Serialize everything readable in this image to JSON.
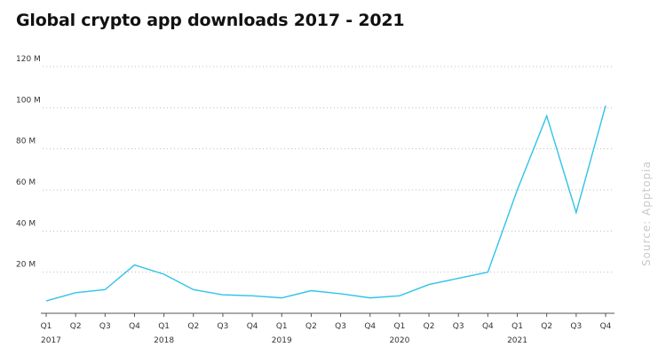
{
  "header": {
    "title": "Global crypto app downloads 2017 - 2021"
  },
  "source": {
    "text": "Source: Apptopia"
  },
  "colors": {
    "line": "#2fc3ea",
    "grid": "#bdbdbd",
    "axis": "#555555",
    "text": "#111111",
    "source": "#c8c8c8"
  },
  "chart_data": {
    "type": "line",
    "title": "Global crypto app downloads 2017 - 2021",
    "xlabel": "",
    "ylabel": "",
    "ylim": [
      0,
      120
    ],
    "y_unit": "M",
    "y_ticks": [
      {
        "value": 20,
        "label": "20 M"
      },
      {
        "value": 40,
        "label": "40 M"
      },
      {
        "value": 60,
        "label": "60 M"
      },
      {
        "value": 80,
        "label": "80 M"
      },
      {
        "value": 100,
        "label": "100 M"
      },
      {
        "value": 120,
        "label": "120 M"
      }
    ],
    "grid": true,
    "legend": "none",
    "categories": [
      "Q1",
      "Q2",
      "Q3",
      "Q4",
      "Q1",
      "Q2",
      "Q3",
      "Q4",
      "Q1",
      "Q2",
      "Q3",
      "Q4",
      "Q1",
      "Q2",
      "Q3",
      "Q4",
      "Q1",
      "Q2",
      "Q3",
      "Q4"
    ],
    "years": [
      {
        "label": "2017",
        "index": 0
      },
      {
        "label": "2018",
        "index": 4
      },
      {
        "label": "2019",
        "index": 8
      },
      {
        "label": "2020",
        "index": 12
      },
      {
        "label": "2021",
        "index": 16
      }
    ],
    "series": [
      {
        "values": [
          6,
          10,
          11.5,
          23.5,
          19,
          11.5,
          9,
          8.5,
          7.5,
          11,
          9.5,
          7.5,
          8.5,
          14,
          17,
          20,
          60,
          96,
          49,
          101
        ]
      }
    ]
  }
}
